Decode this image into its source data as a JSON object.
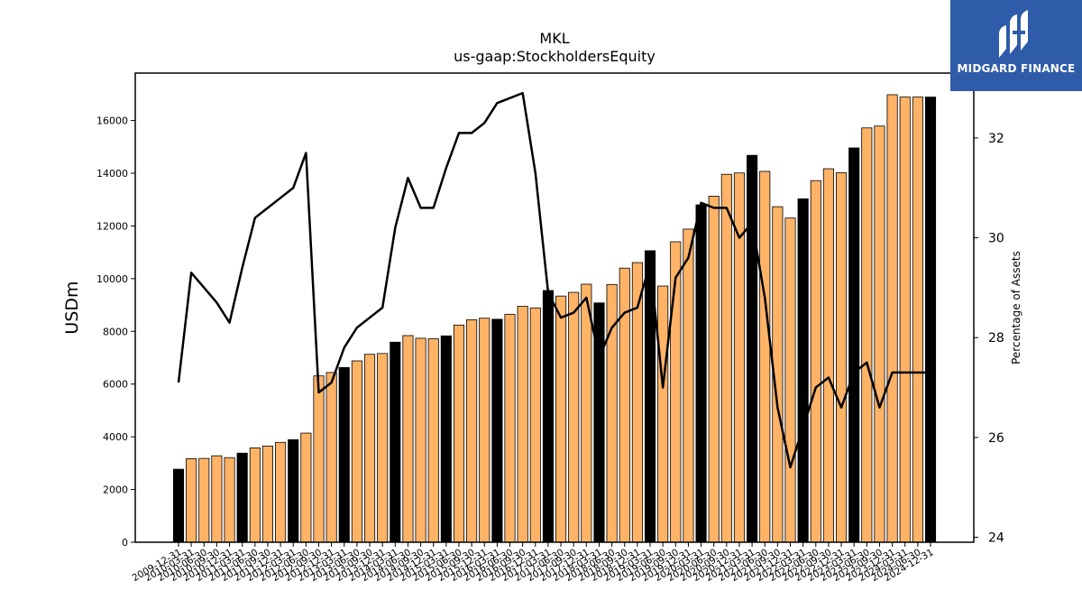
{
  "brand": {
    "name": "MIDGARD FINANCE",
    "bg_color": "#2f5ca8"
  },
  "chart_data": {
    "type": "bar",
    "title": "MKL",
    "subtitle": "us-gaap:StockholdersEquity",
    "ylabel": "USDm",
    "y2label": "Percentage of Assets",
    "ylim": [
      0,
      17800
    ],
    "y2lim": [
      23.9,
      33.3
    ],
    "yticks": [
      0,
      2000,
      4000,
      6000,
      8000,
      10000,
      12000,
      14000,
      16000
    ],
    "y2ticks": [
      24,
      26,
      28,
      30,
      32
    ],
    "colors": {
      "quarter": "#ffb366",
      "annual": "#000000",
      "line": "#000000"
    },
    "categories": [
      "2009-12-31",
      "2010-03-31",
      "2010-06-30",
      "2010-09-30",
      "2010-12-31",
      "2011-03-31",
      "2011-06-30",
      "2011-09-30",
      "2011-12-31",
      "2012-03-31",
      "2012-06-30",
      "2012-09-30",
      "2012-12-31",
      "2013-03-31",
      "2013-06-30",
      "2013-09-30",
      "2013-12-31",
      "2014-03-31",
      "2014-06-30",
      "2014-09-30",
      "2014-12-31",
      "2015-03-31",
      "2015-06-30",
      "2015-09-30",
      "2015-12-31",
      "2016-03-31",
      "2016-06-30",
      "2016-09-30",
      "2016-12-31",
      "2017-03-31",
      "2017-06-30",
      "2017-09-30",
      "2017-12-31",
      "2018-03-31",
      "2018-06-30",
      "2018-09-30",
      "2018-12-31",
      "2019-03-31",
      "2019-06-30",
      "2019-09-30",
      "2019-12-31",
      "2020-03-31",
      "2020-06-30",
      "2020-09-30",
      "2020-12-31",
      "2021-03-31",
      "2021-06-30",
      "2021-09-30",
      "2021-12-31",
      "2022-03-31",
      "2022-06-30",
      "2022-09-30",
      "2022-12-31",
      "2023-03-31",
      "2023-06-30",
      "2023-09-30",
      "2023-12-31",
      "2024-03-31",
      "2024-06-30",
      "2024-12-31"
    ],
    "values": [
      2770,
      3170,
      3180,
      3280,
      3210,
      3380,
      3580,
      3650,
      3790,
      3890,
      4140,
      6310,
      6440,
      6630,
      6880,
      7130,
      7160,
      7590,
      7840,
      7740,
      7720,
      7830,
      8240,
      8440,
      8500,
      8460,
      8650,
      8950,
      8890,
      9550,
      9340,
      9480,
      9790,
      9080,
      9780,
      10400,
      10610,
      11060,
      9720,
      11400,
      11880,
      12800,
      13130,
      13960,
      14010,
      14680,
      14070,
      12730,
      12300,
      13030,
      13720,
      14170,
      14020,
      14960,
      15720,
      15790,
      16980,
      16890,
      16890,
      16890
    ],
    "annual": [
      true,
      false,
      false,
      false,
      false,
      true,
      false,
      false,
      false,
      true,
      false,
      false,
      false,
      true,
      false,
      false,
      false,
      true,
      false,
      false,
      false,
      true,
      false,
      false,
      false,
      true,
      false,
      false,
      false,
      true,
      false,
      false,
      false,
      true,
      false,
      false,
      false,
      true,
      false,
      false,
      false,
      true,
      false,
      false,
      false,
      true,
      false,
      false,
      false,
      true,
      false,
      false,
      false,
      true,
      false,
      false,
      false,
      false,
      false,
      true
    ],
    "pct_assets": [
      27.1,
      29.3,
      29.0,
      28.7,
      28.3,
      29.4,
      30.4,
      30.6,
      30.8,
      31.0,
      31.7,
      26.9,
      27.1,
      27.8,
      28.2,
      28.4,
      28.6,
      30.2,
      31.2,
      30.6,
      30.6,
      31.4,
      32.1,
      32.1,
      32.3,
      32.7,
      32.8,
      32.9,
      31.3,
      28.9,
      28.4,
      28.5,
      28.8,
      27.6,
      28.2,
      28.5,
      28.6,
      29.5,
      27.0,
      29.2,
      29.6,
      30.7,
      30.6,
      30.6,
      30.0,
      30.3,
      28.8,
      26.6,
      25.4,
      26.2,
      27.0,
      27.2,
      26.6,
      27.3,
      27.5,
      26.6,
      27.3,
      27.3,
      27.3,
      27.3
    ]
  }
}
